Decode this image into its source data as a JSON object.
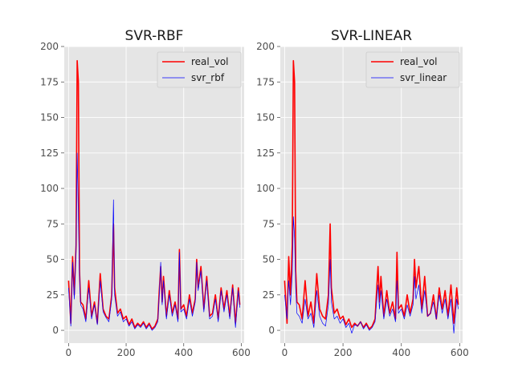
{
  "chart_data": [
    {
      "type": "line",
      "title": "SVR-RBF",
      "xlabel": "",
      "ylabel": "",
      "xlim": [
        -15,
        610
      ],
      "ylim": [
        -9,
        200
      ],
      "xticks": [
        0,
        200,
        400,
        600
      ],
      "yticks": [
        0,
        25,
        50,
        75,
        100,
        125,
        150,
        175,
        200
      ],
      "xtick_labels": [
        "0",
        "200",
        "400",
        "600"
      ],
      "ytick_labels": [
        "0",
        "25",
        "50",
        "75",
        "100",
        "125",
        "150",
        "175",
        "200"
      ],
      "grid": true,
      "legend": "top-right",
      "series": [
        {
          "name": "real_vol",
          "color": "#ff0000",
          "x": [
            0,
            8,
            14,
            20,
            26,
            30,
            34,
            38,
            42,
            50,
            60,
            70,
            80,
            90,
            100,
            110,
            120,
            130,
            140,
            150,
            156,
            160,
            170,
            180,
            190,
            200,
            210,
            220,
            230,
            240,
            250,
            260,
            270,
            280,
            290,
            300,
            310,
            315,
            320,
            325,
            330,
            340,
            350,
            360,
            370,
            380,
            385,
            390,
            400,
            410,
            420,
            430,
            440,
            445,
            450,
            460,
            470,
            480,
            490,
            500,
            510,
            520,
            530,
            540,
            550,
            560,
            570,
            580,
            590,
            595
          ],
          "y": [
            35,
            5,
            52,
            25,
            60,
            190,
            175,
            42,
            20,
            18,
            8,
            35,
            10,
            20,
            5,
            40,
            15,
            10,
            8,
            25,
            75,
            30,
            12,
            15,
            8,
            10,
            4,
            8,
            2,
            5,
            3,
            6,
            2,
            5,
            1,
            3,
            8,
            28,
            45,
            20,
            38,
            10,
            28,
            12,
            20,
            8,
            57,
            15,
            18,
            10,
            25,
            12,
            22,
            50,
            30,
            45,
            15,
            38,
            10,
            12,
            25,
            8,
            30,
            15,
            28,
            10,
            32,
            5,
            30,
            18
          ]
        },
        {
          "name": "svr_rbf",
          "color": "#0000ff",
          "x": [
            0,
            8,
            14,
            20,
            26,
            30,
            34,
            38,
            42,
            50,
            60,
            70,
            80,
            90,
            100,
            110,
            120,
            130,
            140,
            150,
            156,
            160,
            170,
            180,
            190,
            200,
            210,
            220,
            230,
            240,
            250,
            260,
            270,
            280,
            290,
            300,
            310,
            315,
            320,
            325,
            330,
            340,
            350,
            360,
            370,
            380,
            385,
            390,
            400,
            410,
            420,
            430,
            440,
            445,
            450,
            460,
            470,
            480,
            490,
            500,
            510,
            520,
            530,
            540,
            550,
            560,
            570,
            580,
            590,
            595
          ],
          "y": [
            30,
            3,
            48,
            22,
            55,
            125,
            80,
            38,
            18,
            15,
            6,
            30,
            8,
            18,
            4,
            35,
            13,
            9,
            6,
            22,
            92,
            25,
            10,
            13,
            6,
            8,
            3,
            6,
            1,
            4,
            2,
            5,
            1,
            4,
            0,
            2,
            6,
            25,
            48,
            18,
            35,
            8,
            25,
            10,
            18,
            6,
            55,
            13,
            15,
            8,
            22,
            10,
            20,
            48,
            28,
            42,
            13,
            35,
            8,
            10,
            22,
            6,
            28,
            13,
            25,
            8,
            30,
            2,
            28,
            16
          ]
        }
      ]
    },
    {
      "type": "line",
      "title": "SVR-LINEAR",
      "xlabel": "",
      "ylabel": "",
      "xlim": [
        -15,
        610
      ],
      "ylim": [
        -9,
        200
      ],
      "xticks": [
        0,
        200,
        400,
        600
      ],
      "yticks": [
        0,
        25,
        50,
        75,
        100,
        125,
        150,
        175,
        200
      ],
      "xtick_labels": [
        "0",
        "200",
        "400",
        "600"
      ],
      "ytick_labels": [
        "0",
        "25",
        "50",
        "75",
        "100",
        "125",
        "150",
        "175",
        "200"
      ],
      "grid": true,
      "legend": "top-right",
      "series": [
        {
          "name": "real_vol",
          "color": "#ff0000",
          "x": [
            0,
            8,
            14,
            20,
            26,
            30,
            34,
            38,
            42,
            50,
            60,
            70,
            80,
            90,
            100,
            110,
            120,
            130,
            140,
            150,
            156,
            160,
            170,
            180,
            190,
            200,
            210,
            220,
            230,
            240,
            250,
            260,
            270,
            280,
            290,
            300,
            310,
            315,
            320,
            325,
            330,
            340,
            350,
            360,
            370,
            380,
            385,
            390,
            400,
            410,
            420,
            430,
            440,
            445,
            450,
            460,
            470,
            480,
            490,
            500,
            510,
            520,
            530,
            540,
            550,
            560,
            570,
            580,
            590,
            595
          ],
          "y": [
            35,
            5,
            52,
            25,
            60,
            190,
            175,
            42,
            20,
            18,
            8,
            35,
            10,
            20,
            5,
            40,
            15,
            10,
            8,
            25,
            75,
            30,
            12,
            15,
            8,
            10,
            4,
            8,
            2,
            5,
            3,
            6,
            2,
            5,
            1,
            3,
            8,
            28,
            45,
            20,
            38,
            10,
            28,
            12,
            20,
            8,
            55,
            15,
            18,
            10,
            25,
            12,
            22,
            50,
            30,
            45,
            15,
            38,
            10,
            12,
            25,
            8,
            30,
            15,
            28,
            10,
            32,
            5,
            30,
            18
          ]
        },
        {
          "name": "svr_linear",
          "color": "#0000ff",
          "x": [
            0,
            8,
            14,
            20,
            26,
            30,
            34,
            38,
            42,
            50,
            60,
            70,
            80,
            90,
            100,
            110,
            120,
            130,
            140,
            150,
            156,
            160,
            170,
            180,
            190,
            200,
            210,
            220,
            230,
            240,
            250,
            260,
            270,
            280,
            290,
            300,
            310,
            315,
            320,
            325,
            330,
            340,
            350,
            360,
            370,
            380,
            385,
            390,
            400,
            410,
            420,
            430,
            440,
            445,
            450,
            460,
            470,
            480,
            490,
            500,
            510,
            520,
            530,
            540,
            550,
            560,
            570,
            580,
            590,
            595
          ],
          "y": [
            25,
            8,
            35,
            18,
            40,
            80,
            65,
            30,
            12,
            10,
            5,
            22,
            8,
            12,
            2,
            28,
            10,
            5,
            3,
            18,
            50,
            20,
            8,
            10,
            5,
            8,
            2,
            5,
            -2,
            4,
            3,
            6,
            1,
            4,
            0,
            2,
            6,
            20,
            32,
            15,
            28,
            8,
            22,
            10,
            15,
            6,
            35,
            12,
            15,
            8,
            18,
            10,
            18,
            38,
            22,
            32,
            12,
            28,
            10,
            12,
            20,
            8,
            25,
            12,
            22,
            8,
            22,
            -2,
            22,
            15
          ]
        }
      ]
    }
  ]
}
